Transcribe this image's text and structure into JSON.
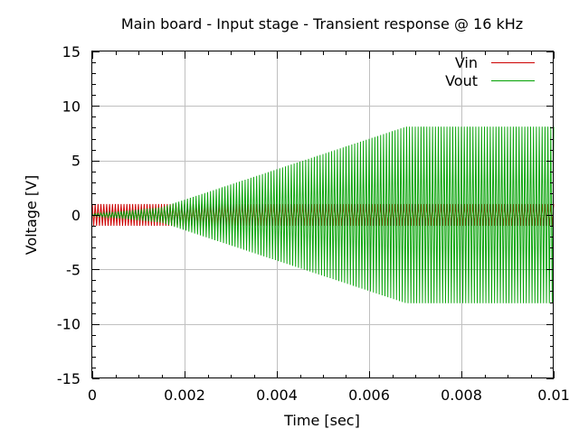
{
  "chart_data": {
    "type": "line",
    "title": "Main board - Input stage - Transient response @ 16 kHz",
    "xlabel": "Time [sec]",
    "ylabel": "Voltage [V]",
    "xlim": [
      0,
      0.01
    ],
    "ylim": [
      -15,
      15
    ],
    "grid": true,
    "legend_position": "top-right",
    "x_ticks": [
      {
        "value": 0,
        "label": "0"
      },
      {
        "value": 0.002,
        "label": "0.002"
      },
      {
        "value": 0.004,
        "label": "0.004"
      },
      {
        "value": 0.006,
        "label": "0.006"
      },
      {
        "value": 0.008,
        "label": "0.008"
      },
      {
        "value": 0.01,
        "label": "0.01"
      }
    ],
    "y_ticks": [
      {
        "value": 15,
        "label": "15"
      },
      {
        "value": 10,
        "label": "10"
      },
      {
        "value": 5,
        "label": "5"
      },
      {
        "value": 0,
        "label": "0"
      },
      {
        "value": -5,
        "label": "-5"
      },
      {
        "value": -10,
        "label": "-10"
      },
      {
        "value": -15,
        "label": "-15"
      }
    ],
    "series": [
      {
        "name": "Vin",
        "color": "#cc0000",
        "frequency_hz": 16000,
        "envelope": {
          "x": [
            0,
            0.01
          ],
          "amplitude": [
            1,
            1
          ]
        }
      },
      {
        "name": "Vout",
        "color": "#00a000",
        "frequency_hz": 16000,
        "envelope": {
          "x": [
            0,
            0.0015,
            0.0068,
            0.01
          ],
          "amplitude": [
            0.1,
            0.7,
            8.1,
            8.1
          ]
        }
      }
    ]
  }
}
